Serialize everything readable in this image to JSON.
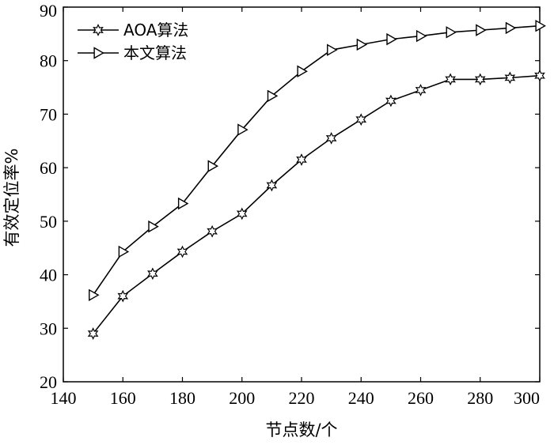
{
  "chart_data": {
    "type": "line",
    "xlabel": "节点数/个",
    "ylabel": "有效定位率%",
    "xlim": [
      140,
      300
    ],
    "ylim": [
      20,
      90
    ],
    "xticks": [
      140,
      160,
      180,
      200,
      220,
      240,
      260,
      280,
      300
    ],
    "yticks": [
      20,
      30,
      40,
      50,
      60,
      70,
      80,
      90
    ],
    "grid": false,
    "legend_position": "top-left",
    "x": [
      150,
      160,
      170,
      180,
      190,
      200,
      210,
      220,
      230,
      240,
      250,
      260,
      270,
      280,
      290,
      300
    ],
    "series": [
      {
        "name": "AOA算法",
        "marker": "hexagram",
        "color": "#000000",
        "values": [
          29.0,
          36.0,
          40.2,
          44.3,
          48.1,
          51.4,
          56.7,
          61.5,
          65.5,
          69.0,
          72.5,
          74.5,
          76.5,
          76.5,
          76.8,
          77.2
        ]
      },
      {
        "name": "本文算法",
        "marker": "triangle-right",
        "color": "#000000",
        "values": [
          36.2,
          44.3,
          49.0,
          53.3,
          60.3,
          67.1,
          73.4,
          78.0,
          82.0,
          83.0,
          84.0,
          84.6,
          85.3,
          85.7,
          86.1,
          86.5
        ]
      }
    ]
  }
}
